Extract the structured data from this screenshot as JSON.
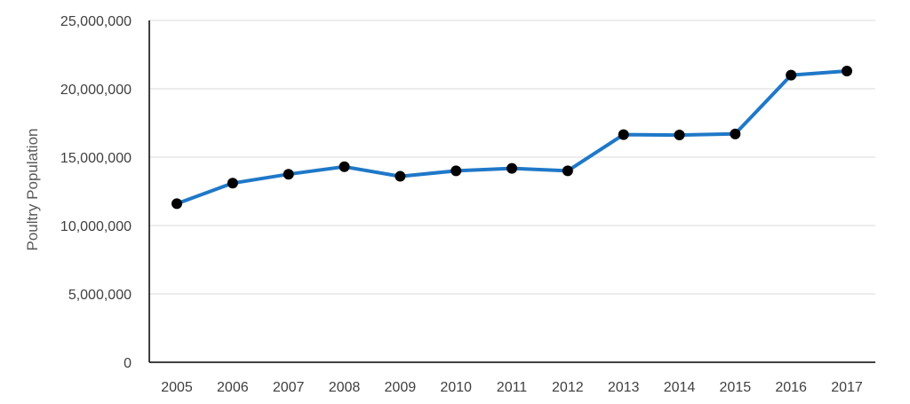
{
  "chart_data": {
    "type": "line",
    "title": "",
    "xlabel": "",
    "ylabel": "Poultry Population",
    "categories": [
      "2005",
      "2006",
      "2007",
      "2008",
      "2009",
      "2010",
      "2011",
      "2012",
      "2013",
      "2014",
      "2015",
      "2016",
      "2017"
    ],
    "series": [
      {
        "values": [
          11600000,
          13100000,
          13750000,
          14300000,
          13600000,
          14000000,
          14180000,
          14000000,
          16650000,
          16620000,
          16700000,
          21000000,
          21300000
        ],
        "color": "#1f78c8",
        "marker_color": "#000000"
      }
    ],
    "ylim": [
      0,
      25000000
    ],
    "yticks": [
      0,
      5000000,
      10000000,
      15000000,
      20000000,
      25000000
    ],
    "ytick_labels": [
      "0",
      "5,000,000",
      "10,000,000",
      "15,000,000",
      "20,000,000",
      "25,000,000"
    ],
    "grid": true,
    "grid_color": "#d9d9d9",
    "legend": "none"
  }
}
